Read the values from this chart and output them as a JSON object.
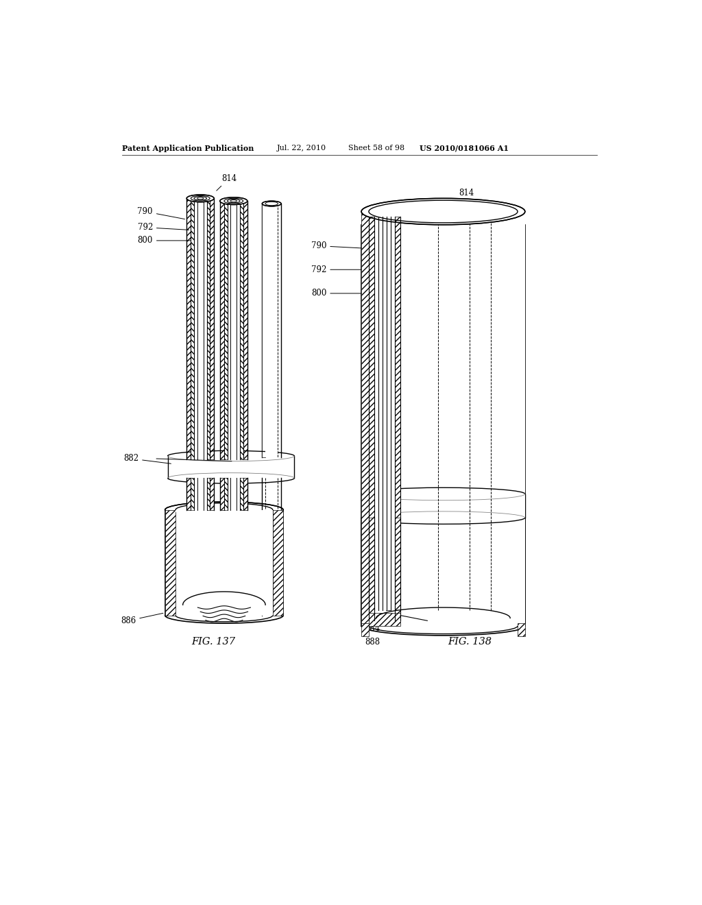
{
  "bg_color": "#ffffff",
  "header_text": "Patent Application Publication",
  "header_date": "Jul. 22, 2010",
  "header_sheet": "Sheet 58 of 98",
  "header_patent": "US 2010/0181066 A1",
  "fig137_label": "FIG. 137",
  "fig138_label": "FIG. 138",
  "line_color": "#000000",
  "label_fontsize": 8.5,
  "header_fontsize": 8.0,
  "fig_label_fontsize": 10.5
}
